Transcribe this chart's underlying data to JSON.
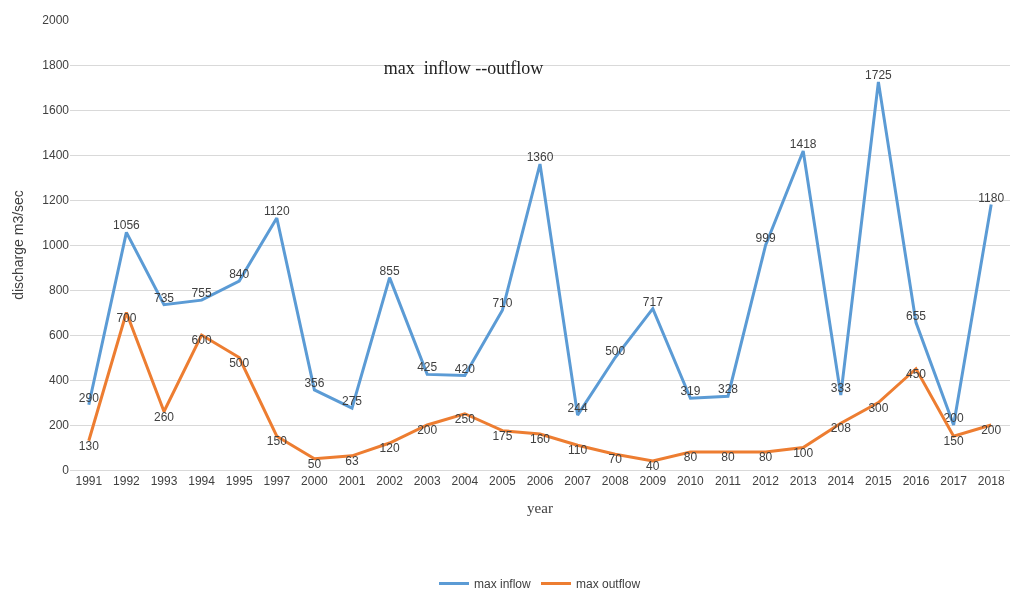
{
  "chart_data": {
    "type": "line",
    "title": "max  inflow --outflow",
    "xlabel": "year",
    "ylabel": "discharge m3/sec",
    "categories": [
      "1991",
      "1992",
      "1993",
      "1994",
      "1995",
      "1997",
      "2000",
      "2001",
      "2002",
      "2003",
      "2004",
      "2005",
      "2006",
      "2007",
      "2008",
      "2009",
      "2010",
      "2011",
      "2012",
      "2013",
      "2014",
      "2015",
      "2016",
      "2017",
      "2018"
    ],
    "series": [
      {
        "name": "max inflow",
        "color": "#5b9bd5",
        "values": [
          290,
          1056,
          735,
          755,
          840,
          1120,
          356,
          275,
          855,
          425,
          420,
          710,
          1360,
          244,
          500,
          717,
          319,
          328,
          999,
          1418,
          333,
          1725,
          655,
          200,
          1180
        ]
      },
      {
        "name": "max outflow",
        "color": "#ed7d31",
        "values": [
          130,
          700,
          260,
          600,
          500,
          150,
          50,
          63,
          120,
          200,
          250,
          175,
          160,
          110,
          70,
          40,
          80,
          80,
          80,
          100,
          208,
          300,
          450,
          150,
          200
        ]
      }
    ],
    "ylim": [
      0,
      2000
    ],
    "yticks": [
      0,
      200,
      400,
      600,
      800,
      1000,
      1200,
      1400,
      1600,
      1800,
      2000
    ],
    "grid": "y",
    "legend": "bottom",
    "marker": "none",
    "line_style": "solid",
    "data_labels": true
  }
}
